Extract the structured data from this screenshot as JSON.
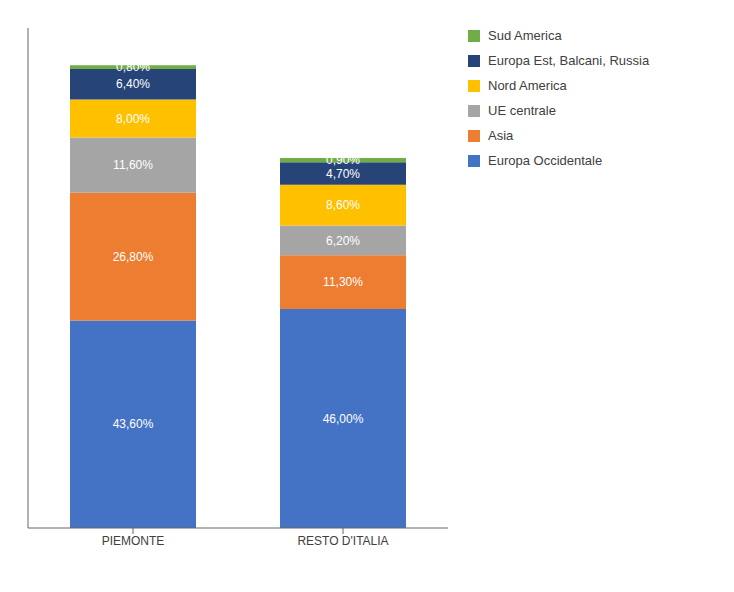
{
  "chart_data": {
    "type": "bar",
    "stacked": true,
    "categories": [
      "PIEMONTE",
      "RESTO D'ITALIA"
    ],
    "series": [
      {
        "name": "Europa Occidentale",
        "color": "#4472C4",
        "values": [
          43.6,
          46.0
        ],
        "value_labels": [
          "43,60%",
          "46,00%"
        ]
      },
      {
        "name": "Asia",
        "color": "#ED7D31",
        "values": [
          26.8,
          11.3
        ],
        "value_labels": [
          "26,80%",
          "11,30%"
        ]
      },
      {
        "name": "UE centrale",
        "color": "#A5A5A5",
        "values": [
          11.6,
          6.2
        ],
        "value_labels": [
          "11,60%",
          "6,20%"
        ]
      },
      {
        "name": "Nord America",
        "color": "#FFC000",
        "values": [
          8.0,
          8.6
        ],
        "value_labels": [
          "8,00%",
          "8,60%"
        ]
      },
      {
        "name": "Europa Est, Balcani, Russia",
        "color": "#264478",
        "values": [
          6.4,
          4.7
        ],
        "value_labels": [
          "6,40%",
          "4,70%"
        ]
      },
      {
        "name": "Sud America",
        "color": "#70AD47",
        "values": [
          0.8,
          0.9
        ],
        "value_labels": [
          "0,80%",
          "0,90%"
        ]
      }
    ],
    "ylim": [
      0,
      105
    ],
    "data_labels": true,
    "tick_labels": "x",
    "legend": "upper right",
    "grid": false
  }
}
